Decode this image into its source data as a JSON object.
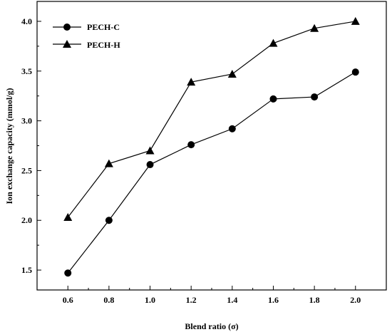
{
  "chart_data": {
    "type": "line",
    "title": "",
    "xlabel": "Blend ratio (σ)",
    "ylabel": "Ion exchange capacity (mmol/g)",
    "x": [
      0.6,
      0.8,
      1.0,
      1.2,
      1.4,
      1.6,
      1.8,
      2.0
    ],
    "xlim": [
      0.45,
      2.15
    ],
    "ylim": [
      1.3,
      4.2
    ],
    "x_ticks": [
      0.6,
      0.8,
      1.0,
      1.2,
      1.4,
      1.6,
      1.8,
      2.0
    ],
    "x_tick_labels": [
      "0.6",
      "0.8",
      "1.0",
      "1.2",
      "1.4",
      "1.6",
      "1.8",
      "2.0"
    ],
    "y_ticks": [
      1.5,
      2.0,
      2.5,
      3.0,
      3.5,
      4.0
    ],
    "y_tick_labels": [
      "1.5",
      "2.0",
      "2.5",
      "3.0",
      "3.5",
      "4.0"
    ],
    "grid": false,
    "legend_position": "top-left",
    "series": [
      {
        "name": "PECH-C",
        "marker": "circle",
        "color": "#000000",
        "values": [
          1.47,
          2.0,
          2.56,
          2.76,
          2.92,
          3.22,
          3.24,
          3.49
        ]
      },
      {
        "name": "PECH-H",
        "marker": "triangle",
        "color": "#000000",
        "values": [
          2.03,
          2.57,
          2.7,
          3.39,
          3.47,
          3.78,
          3.93,
          4.0
        ]
      }
    ]
  }
}
